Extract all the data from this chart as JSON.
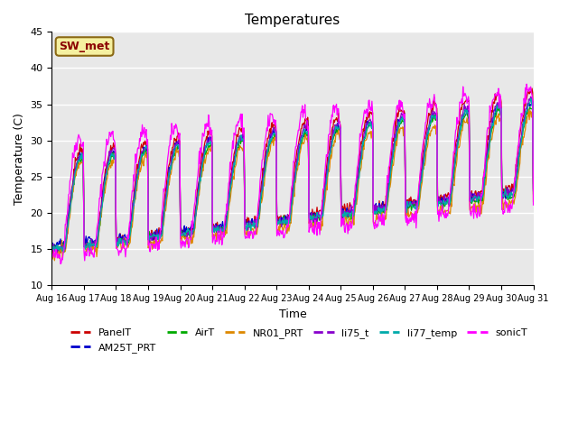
{
  "title": "Temperatures",
  "xlabel": "Time",
  "ylabel": "Temperature (C)",
  "ylim": [
    10,
    45
  ],
  "n_days": 15,
  "x_tick_labels": [
    "Aug 16",
    "Aug 17",
    "Aug 18",
    "Aug 19",
    "Aug 20",
    "Aug 21",
    "Aug 22",
    "Aug 23",
    "Aug 24",
    "Aug 25",
    "Aug 26",
    "Aug 27",
    "Aug 28",
    "Aug 29",
    "Aug 30",
    "Aug 31"
  ],
  "annotation_text": "SW_met",
  "annotation_bg": "#f5f0a0",
  "annotation_border": "#8b6914",
  "series_colors": {
    "PanelT": "#cc0000",
    "AM25T_PRT": "#0000cc",
    "AirT": "#00aa00",
    "NR01_PRT": "#dd8800",
    "li75_t": "#8800cc",
    "li77_temp": "#00aaaa",
    "sonicT": "#ff00ff"
  },
  "legend_order": [
    "PanelT",
    "AM25T_PRT",
    "AirT",
    "NR01_PRT",
    "li75_t",
    "li77_temp",
    "sonicT"
  ],
  "bg_color": "#e8e8e8"
}
